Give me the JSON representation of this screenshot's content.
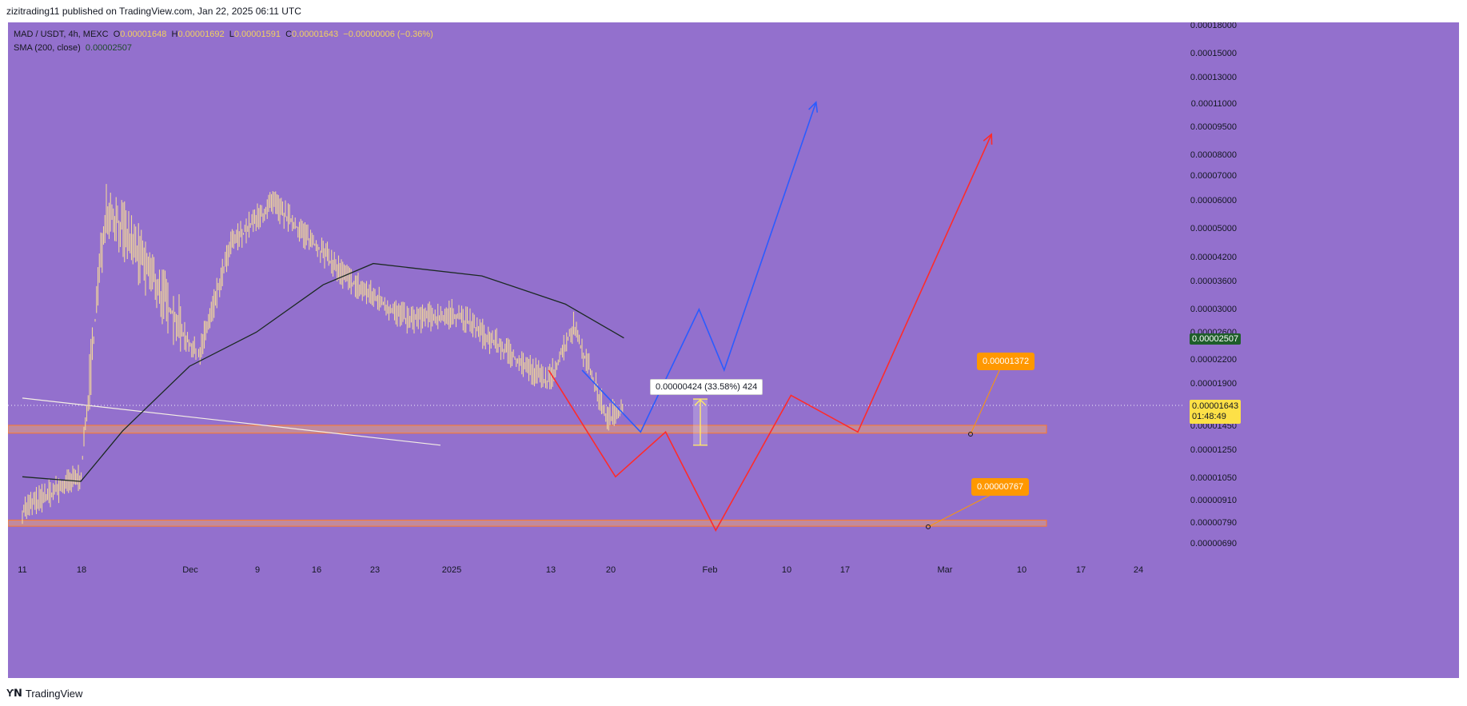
{
  "header": {
    "publisher_line": "zizitrading11 published on TradingView.com, Jan 22, 2025 06:11 UTC"
  },
  "legend": {
    "symbol": "MAD / USDT, 4h, MEXC",
    "o_label": "O",
    "o_value": "0.00001648",
    "h_label": "H",
    "h_value": "0.00001692",
    "l_label": "L",
    "l_value": "0.00001591",
    "c_label": "C",
    "c_value": "0.00001643",
    "change": "−0.00000006 (−0.36%)",
    "sma_label": "SMA (200, close)",
    "sma_value": "0.00002507"
  },
  "footer": {
    "logo": "Ƴ𝗡",
    "brand": "TradingView"
  },
  "colors": {
    "background": "#9370cd",
    "candle": "#f2d79a",
    "sma": "#1b2a22",
    "zone_fill": "#e6a07a",
    "zone_border": "#ff7a2a",
    "blue_path": "#2a5cff",
    "red_path": "#ff2b2b",
    "badge_orange": "#ff9800",
    "sma_badge": "#1e5e2a",
    "price_badge": "#fde047"
  },
  "chart_data": {
    "type": "line",
    "scale": "log",
    "title": "",
    "xlabel": "",
    "ylabel": "",
    "x_tick_labels": [
      "11",
      "18",
      "Dec",
      "9",
      "16",
      "23",
      "2025",
      "13",
      "20",
      "Feb",
      "10",
      "17",
      "Mar",
      "10",
      "17",
      "24"
    ],
    "y_tick_labels": [
      "0.00018000",
      "0.00015000",
      "0.00013000",
      "0.00011000",
      "0.00009500",
      "0.00008000",
      "0.00007000",
      "0.00006000",
      "0.00005000",
      "0.00004200",
      "0.00003600",
      "0.00003000",
      "0.00002600",
      "0.00002200",
      "0.00001900",
      "0.00001450",
      "0.00001250",
      "0.00001050",
      "0.00000910",
      "0.00000790",
      "0.00000690"
    ],
    "ylim": [
      6.3e-06,
      1.9e-05
    ],
    "price_series_approx": [
      {
        "x": "Nov 11",
        "y": 8.5e-06
      },
      {
        "x": "Nov 18",
        "y": 1.05e-05
      },
      {
        "x": "Nov 21",
        "y": 5.8e-05
      },
      {
        "x": "Nov 25",
        "y": 4.2e-05
      },
      {
        "x": "Dec 2",
        "y": 2.2e-05
      },
      {
        "x": "Dec 6",
        "y": 4.5e-05
      },
      {
        "x": "Dec 11",
        "y": 5.8e-05
      },
      {
        "x": "Dec 16",
        "y": 4.5e-05
      },
      {
        "x": "Dec 20",
        "y": 3.6e-05
      },
      {
        "x": "Dec 27",
        "y": 2.8e-05
      },
      {
        "x": "Jan 2",
        "y": 2.9e-05
      },
      {
        "x": "Jan 9",
        "y": 2.2e-05
      },
      {
        "x": "Jan 13",
        "y": 1.9e-05
      },
      {
        "x": "Jan 16",
        "y": 2.7e-05
      },
      {
        "x": "Jan 20",
        "y": 1.5e-05
      },
      {
        "x": "Jan 22",
        "y": 1.643e-05
      }
    ],
    "sma_series_approx": [
      {
        "x": "Nov 11",
        "y": 1.05e-05
      },
      {
        "x": "Nov 18",
        "y": 1.02e-05
      },
      {
        "x": "Nov 23",
        "y": 1.4e-05
      },
      {
        "x": "Dec 1",
        "y": 2.1e-05
      },
      {
        "x": "Dec 9",
        "y": 2.6e-05
      },
      {
        "x": "Dec 17",
        "y": 3.5e-05
      },
      {
        "x": "Dec 23",
        "y": 4e-05
      },
      {
        "x": "Jan 5",
        "y": 3.7e-05
      },
      {
        "x": "Jan 15",
        "y": 3.1e-05
      },
      {
        "x": "Jan 22",
        "y": 2.507e-05
      }
    ],
    "support_zones": [
      {
        "low": 1.38e-05,
        "high": 1.45e-05
      },
      {
        "low": 7.7e-06,
        "high": 8e-06
      }
    ],
    "trendline": {
      "from": {
        "x": "Nov 11",
        "y": 1.72e-05
      },
      "to": {
        "x": "Jan 1",
        "y": 1.28e-05
      }
    },
    "projection_blue": [
      {
        "x": "Jan 17",
        "y": 2.05e-05
      },
      {
        "x": "Jan 24",
        "y": 1.39e-05
      },
      {
        "x": "Jan 31",
        "y": 3e-05
      },
      {
        "x": "Feb 3",
        "y": 2.05e-05
      },
      {
        "x": "Feb 14",
        "y": 0.00011
      }
    ],
    "projection_red": [
      {
        "x": "Jan 13",
        "y": 2.05e-05
      },
      {
        "x": "Jan 21",
        "y": 1.05e-05
      },
      {
        "x": "Jan 27",
        "y": 1.39e-05
      },
      {
        "x": "Feb 2",
        "y": 7.5e-06
      },
      {
        "x": "Feb 11",
        "y": 1.75e-05
      },
      {
        "x": "Feb 19",
        "y": 1.39e-05
      },
      {
        "x": "Mar 7",
        "y": 9e-05
      }
    ],
    "measure": {
      "label": "0.00000424 (33.58%) 424",
      "from": 1.28e-05,
      "to": 1.71e-05
    },
    "target_labels": [
      {
        "text": "0.00001372",
        "price": 1.372e-05
      },
      {
        "text": "0.00000767",
        "price": 7.67e-06
      }
    ],
    "current_price": {
      "value": "0.00001643",
      "timer": "01:48:49"
    },
    "sma_badge": "0.00002507"
  }
}
